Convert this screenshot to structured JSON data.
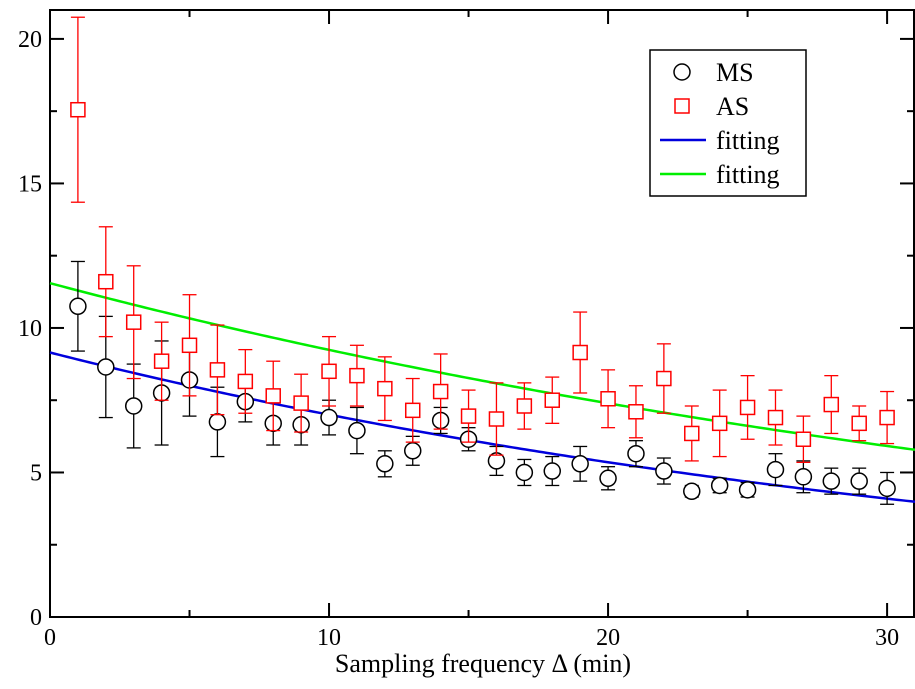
{
  "chart_data": {
    "type": "scatter",
    "xlabel": "Sampling frequency Δ (min)",
    "ylabel": "",
    "xlim": [
      0,
      31
    ],
    "ylim": [
      0,
      21
    ],
    "xticks": [
      0,
      10,
      20,
      30
    ],
    "yticks": [
      0,
      5,
      10,
      15,
      20
    ],
    "grid": false,
    "legend_position": "top-right",
    "series": [
      {
        "name": "MS",
        "marker": "circle",
        "color": "#000000",
        "x": [
          1,
          2,
          3,
          4,
          5,
          6,
          7,
          8,
          9,
          10,
          11,
          12,
          13,
          14,
          15,
          16,
          17,
          18,
          19,
          20,
          21,
          22,
          23,
          24,
          25,
          26,
          27,
          28,
          29,
          30
        ],
        "y": [
          10.75,
          8.65,
          7.3,
          7.75,
          8.2,
          6.75,
          7.45,
          6.7,
          6.65,
          6.9,
          6.45,
          5.3,
          5.75,
          6.8,
          6.15,
          5.4,
          5.0,
          5.05,
          5.3,
          4.8,
          5.65,
          5.05,
          4.35,
          4.55,
          4.4,
          5.1,
          4.85,
          4.7,
          4.7,
          4.45
        ],
        "err": [
          1.55,
          1.75,
          1.45,
          1.8,
          1.25,
          1.2,
          0.7,
          0.75,
          0.7,
          0.6,
          0.8,
          0.45,
          0.5,
          0.45,
          0.4,
          0.5,
          0.45,
          0.5,
          0.6,
          0.4,
          0.45,
          0.45,
          0.2,
          0.25,
          0.25,
          0.55,
          0.55,
          0.45,
          0.45,
          0.55
        ]
      },
      {
        "name": "AS",
        "marker": "square",
        "color": "#ff0000",
        "x": [
          1,
          2,
          3,
          4,
          5,
          6,
          7,
          8,
          9,
          10,
          11,
          12,
          13,
          14,
          15,
          16,
          17,
          18,
          19,
          20,
          21,
          22,
          23,
          24,
          25,
          26,
          27,
          28,
          29,
          30
        ],
        "y": [
          17.55,
          11.6,
          10.2,
          8.85,
          9.4,
          8.55,
          8.15,
          7.65,
          7.4,
          8.5,
          8.35,
          7.9,
          7.15,
          7.8,
          6.95,
          6.85,
          7.3,
          7.5,
          9.15,
          7.55,
          7.1,
          8.25,
          6.35,
          6.7,
          7.25,
          6.9,
          6.15,
          7.35,
          6.7,
          6.9
        ],
        "err": [
          3.2,
          1.9,
          1.95,
          1.35,
          1.75,
          1.55,
          1.1,
          1.2,
          1.0,
          1.2,
          1.05,
          1.1,
          1.1,
          1.3,
          0.9,
          1.25,
          0.8,
          0.8,
          1.4,
          1.0,
          0.9,
          1.2,
          0.95,
          1.15,
          1.1,
          0.95,
          0.8,
          1.0,
          0.6,
          0.9
        ]
      }
    ],
    "fits": [
      {
        "name": "fitting",
        "color": "#0000dd",
        "a": 9.15,
        "b": 0.0268
      },
      {
        "name": "fitting",
        "color": "#00ee00",
        "a": 11.55,
        "b": 0.0223
      }
    ]
  }
}
